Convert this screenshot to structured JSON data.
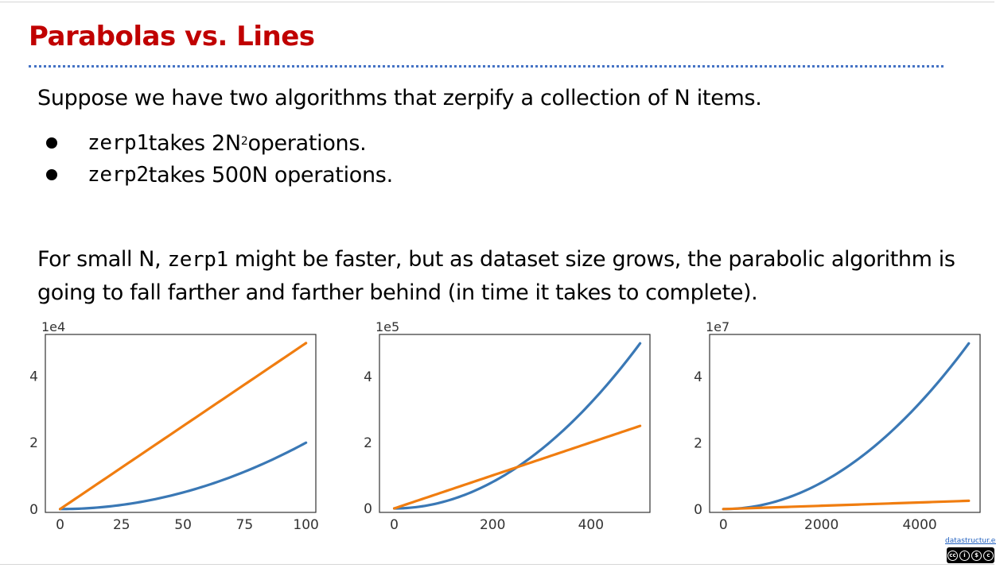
{
  "slide": {
    "title": "Parabolas vs. Lines",
    "intro": "Suppose we have two algorithms that zerpify a collection of N items.",
    "bullets": [
      {
        "code": "zerp1",
        "pre": " takes 2N",
        "sup": "2",
        "post": " operations."
      },
      {
        "code": "zerp2",
        "pre": " takes 500N operations.",
        "sup": "",
        "post": ""
      }
    ],
    "paragraph": {
      "part1": "For small N, ",
      "code": "zerp1",
      "part2": " might be faster, but as dataset size grows, the parabolic algorithm is going to fall farther and farther behind (in time it takes to complete)."
    },
    "footer_link": "datastructur.es"
  },
  "colors": {
    "title": "#c00000",
    "divider": "#4472c4",
    "zerp1": "#3a78b5",
    "zerp2": "#f07d10"
  },
  "icons": [
    "creative-commons-icon",
    "by-icon",
    "nc-icon",
    "sa-icon"
  ],
  "chart_data": [
    {
      "type": "line",
      "offset_label": "1e4",
      "xlim": [
        -6,
        104
      ],
      "ylim": [
        -1000,
        52600
      ],
      "x_ticks": [
        0,
        25,
        50,
        75,
        100
      ],
      "y_ticks": [
        0,
        2,
        4
      ],
      "y_tick_scale": 10000,
      "series": [
        {
          "formula": "2N^2",
          "x_max": 100,
          "color": "#3a78b5"
        },
        {
          "formula": "500N",
          "x_max": 100,
          "color": "#f07d10"
        }
      ]
    },
    {
      "type": "line",
      "offset_label": "1e5",
      "xlim": [
        -30,
        520
      ],
      "ylim": [
        -12000,
        527000
      ],
      "x_ticks": [
        0,
        200,
        400
      ],
      "y_ticks": [
        0,
        2,
        4
      ],
      "y_tick_scale": 100000,
      "series": [
        {
          "formula": "2N^2",
          "x_max": 500,
          "color": "#3a78b5"
        },
        {
          "formula": "500N",
          "x_max": 500,
          "color": "#f07d10"
        }
      ]
    },
    {
      "type": "line",
      "offset_label": "1e7",
      "xlim": [
        -280,
        5230
      ],
      "ylim": [
        -1000000,
        52700000
      ],
      "x_ticks": [
        0,
        2000,
        4000
      ],
      "y_ticks": [
        0,
        2,
        4
      ],
      "y_tick_scale": 10000000,
      "series": [
        {
          "formula": "2N^2",
          "x_max": 5000,
          "color": "#3a78b5"
        },
        {
          "formula": "500N",
          "x_max": 5000,
          "color": "#f07d10"
        }
      ]
    }
  ]
}
